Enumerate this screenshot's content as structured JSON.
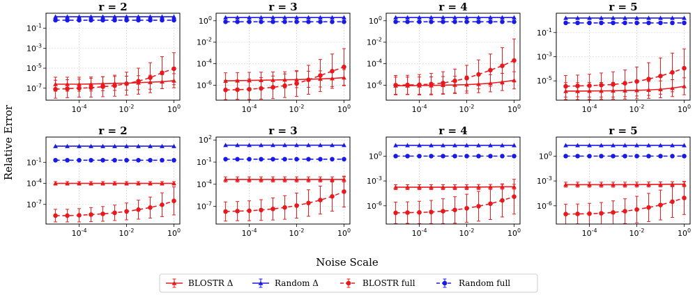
{
  "chart_data": {
    "type": "line",
    "xlabel": "Noise Scale",
    "ylabel": "Relative Error",
    "x_scale": "log",
    "y_scale": "log",
    "x": [
      1e-05,
      3.16e-05,
      0.0001,
      0.000316,
      0.001,
      0.00316,
      0.01,
      0.0316,
      0.1,
      0.316,
      1
    ],
    "x_ticks": [
      {
        "value": -4,
        "label": "10",
        "exp": "-4"
      },
      {
        "value": -2,
        "label": "10",
        "exp": "-2"
      },
      {
        "value": 0,
        "label": "10",
        "exp": "0"
      }
    ],
    "legend": [
      {
        "name": "BLOSTR Δ",
        "color": "#e8191d",
        "dash": "solid",
        "marker": "triangle"
      },
      {
        "name": "Random Δ",
        "color": "#1a1ae6",
        "dash": "solid",
        "marker": "triangle"
      },
      {
        "name": "BLOSTR full",
        "color": "#e8191d",
        "dash": "dashed",
        "marker": "circle"
      },
      {
        "name": "Random full",
        "color": "#1a1ae6",
        "dash": "dashed",
        "marker": "circle"
      }
    ],
    "panels": [
      {
        "title": "r = 2",
        "ylim": [
          -8.2,
          0.5
        ],
        "y_ticks": [
          {
            "value": -1,
            "label": "10",
            "exp": "-1"
          },
          {
            "value": -3,
            "label": "10",
            "exp": "-3"
          },
          {
            "value": -5,
            "label": "10",
            "exp": "-5"
          },
          {
            "value": -7,
            "label": "10",
            "exp": "-7"
          }
        ],
        "series": {
          "blostr_delta": [
            -6.6,
            -6.6,
            -6.6,
            -6.58,
            -6.55,
            -6.52,
            -6.5,
            -6.45,
            -6.4,
            -6.35,
            -6.25
          ],
          "random_delta": [
            0.15,
            0.15,
            0.15,
            0.15,
            0.15,
            0.15,
            0.15,
            0.15,
            0.15,
            0.15,
            0.15
          ],
          "blostr_full": [
            -7.1,
            -7.05,
            -7.0,
            -6.95,
            -6.85,
            -6.75,
            -6.55,
            -6.3,
            -5.95,
            -5.45,
            -5.05
          ],
          "random_full": [
            -0.2,
            -0.2,
            -0.2,
            -0.2,
            -0.2,
            -0.2,
            -0.2,
            -0.2,
            -0.2,
            -0.2,
            -0.2
          ]
        },
        "err_delta": 0.7,
        "err_full": [
          0.9,
          0.9,
          0.9,
          0.95,
          1.0,
          1.05,
          1.15,
          1.3,
          1.5,
          1.6,
          1.6
        ]
      },
      {
        "title": "r = 3",
        "ylim": [
          -7.4,
          0.7
        ],
        "y_ticks": [
          {
            "value": 0,
            "label": "10",
            "exp": "0"
          },
          {
            "value": -2,
            "label": "10",
            "exp": "-2"
          },
          {
            "value": -4,
            "label": "10",
            "exp": "-4"
          },
          {
            "value": -6,
            "label": "10",
            "exp": "-6"
          }
        ],
        "series": {
          "blostr_delta": [
            -5.6,
            -5.58,
            -5.56,
            -5.54,
            -5.52,
            -5.5,
            -5.48,
            -5.45,
            -5.42,
            -5.38,
            -5.3
          ],
          "random_delta": [
            0.3,
            0.3,
            0.3,
            0.3,
            0.3,
            0.3,
            0.3,
            0.3,
            0.3,
            0.3,
            0.3
          ],
          "blostr_full": [
            -6.45,
            -6.42,
            -6.38,
            -6.3,
            -6.2,
            -6.05,
            -5.85,
            -5.5,
            -5.1,
            -4.7,
            -4.3
          ],
          "random_full": [
            -0.1,
            -0.1,
            -0.1,
            -0.1,
            -0.1,
            -0.1,
            -0.1,
            -0.1,
            -0.1,
            -0.1,
            -0.1
          ]
        },
        "err_delta": 0.75,
        "err_full": [
          0.9,
          0.9,
          0.95,
          1.0,
          1.05,
          1.1,
          1.2,
          1.35,
          1.5,
          1.6,
          1.7
        ]
      },
      {
        "title": "r = 4",
        "ylim": [
          -7.4,
          0.7
        ],
        "y_ticks": [
          {
            "value": 0,
            "label": "10",
            "exp": "0"
          },
          {
            "value": -2,
            "label": "10",
            "exp": "-2"
          },
          {
            "value": -4,
            "label": "10",
            "exp": "-4"
          },
          {
            "value": -6,
            "label": "10",
            "exp": "-6"
          }
        ],
        "series": {
          "blostr_delta": [
            -6.05,
            -6.05,
            -6.04,
            -6.03,
            -6.0,
            -5.98,
            -5.95,
            -5.9,
            -5.82,
            -5.7,
            -5.55
          ],
          "random_delta": [
            0.3,
            0.3,
            0.3,
            0.3,
            0.3,
            0.3,
            0.3,
            0.3,
            0.3,
            0.3,
            0.3
          ],
          "blostr_full": [
            -6.0,
            -5.98,
            -5.96,
            -5.9,
            -5.8,
            -5.6,
            -5.35,
            -5.0,
            -4.6,
            -4.2,
            -3.7
          ],
          "random_full": [
            -0.1,
            -0.1,
            -0.1,
            -0.1,
            -0.1,
            -0.1,
            -0.1,
            -0.1,
            -0.1,
            -0.1,
            -0.1
          ]
        },
        "err_delta": 0.8,
        "err_full": [
          0.9,
          0.9,
          0.95,
          1.0,
          1.05,
          1.1,
          1.2,
          1.35,
          1.5,
          1.7,
          2.0
        ]
      },
      {
        "title": "r = 5",
        "ylim": [
          -6.6,
          0.6
        ],
        "y_ticks": [
          {
            "value": -1,
            "label": "10",
            "exp": "-1"
          },
          {
            "value": -3,
            "label": "10",
            "exp": "-3"
          },
          {
            "value": -5,
            "label": "10",
            "exp": "-5"
          }
        ],
        "series": {
          "blostr_delta": [
            -5.85,
            -5.85,
            -5.84,
            -5.83,
            -5.82,
            -5.8,
            -5.78,
            -5.75,
            -5.7,
            -5.6,
            -5.45
          ],
          "random_delta": [
            0.2,
            0.2,
            0.2,
            0.2,
            0.2,
            0.2,
            0.2,
            0.2,
            0.2,
            0.2,
            0.2
          ],
          "blostr_full": [
            -5.45,
            -5.42,
            -5.4,
            -5.35,
            -5.3,
            -5.2,
            -5.05,
            -4.85,
            -4.6,
            -4.3,
            -3.95
          ],
          "random_full": [
            -0.2,
            -0.2,
            -0.2,
            -0.2,
            -0.2,
            -0.2,
            -0.2,
            -0.2,
            -0.2,
            -0.2,
            -0.2
          ]
        },
        "err_delta": 0.7,
        "err_full": [
          0.9,
          0.9,
          0.95,
          1.0,
          1.05,
          1.1,
          1.2,
          1.35,
          1.5,
          1.6,
          1.6
        ]
      },
      {
        "title": "r = 2",
        "ylim": [
          -9.8,
          2.6
        ],
        "y_ticks": [
          {
            "value": -1,
            "label": "10",
            "exp": "-1"
          },
          {
            "value": -4,
            "label": "10",
            "exp": "-4"
          },
          {
            "value": -7,
            "label": "10",
            "exp": "-7"
          }
        ],
        "series": {
          "blostr_delta": [
            -4.0,
            -4.0,
            -4.0,
            -4.0,
            -4.0,
            -4.0,
            -4.0,
            -4.0,
            -4.0,
            -4.0,
            -4.0
          ],
          "random_delta": [
            1.3,
            1.3,
            1.3,
            1.3,
            1.3,
            1.3,
            1.3,
            1.3,
            1.3,
            1.3,
            1.3
          ],
          "blostr_full": [
            -8.6,
            -8.6,
            -8.55,
            -8.45,
            -8.35,
            -8.2,
            -8.0,
            -7.75,
            -7.45,
            -7.05,
            -6.5
          ],
          "random_full": [
            -0.7,
            -0.7,
            -0.7,
            -0.7,
            -0.7,
            -0.7,
            -0.7,
            -0.7,
            -0.7,
            -0.7,
            -0.7
          ]
        },
        "err_delta": 0.25,
        "err_full": [
          0.9,
          0.9,
          0.95,
          1.0,
          1.05,
          1.1,
          1.2,
          1.35,
          1.5,
          1.7,
          2.0
        ]
      },
      {
        "title": "r = 3",
        "ylim": [
          -9.4,
          2.4
        ],
        "y_ticks": [
          {
            "value": 2,
            "label": "10",
            "exp": "2"
          },
          {
            "value": -1,
            "label": "10",
            "exp": "-1"
          },
          {
            "value": -4,
            "label": "10",
            "exp": "-4"
          },
          {
            "value": -7,
            "label": "10",
            "exp": "-7"
          }
        ],
        "series": {
          "blostr_delta": [
            -3.35,
            -3.35,
            -3.35,
            -3.35,
            -3.35,
            -3.35,
            -3.35,
            -3.35,
            -3.35,
            -3.35,
            -3.35
          ],
          "random_delta": [
            1.3,
            1.3,
            1.3,
            1.3,
            1.3,
            1.3,
            1.3,
            1.3,
            1.3,
            1.3,
            1.3
          ],
          "blostr_full": [
            -7.7,
            -7.65,
            -7.6,
            -7.5,
            -7.35,
            -7.15,
            -6.9,
            -6.55,
            -6.15,
            -5.65,
            -5.0
          ],
          "random_full": [
            -0.6,
            -0.6,
            -0.6,
            -0.6,
            -0.6,
            -0.6,
            -0.6,
            -0.6,
            -0.6,
            -0.6,
            -0.6
          ]
        },
        "err_delta": 0.35,
        "err_full": [
          1.3,
          1.3,
          1.35,
          1.4,
          1.5,
          1.6,
          1.7,
          1.8,
          1.9,
          2.0,
          2.1
        ]
      },
      {
        "title": "r = 4",
        "ylim": [
          -8.2,
          2.3
        ],
        "y_ticks": [
          {
            "value": 0,
            "label": "10",
            "exp": "0"
          },
          {
            "value": -3,
            "label": "10",
            "exp": "-3"
          },
          {
            "value": -6,
            "label": "10",
            "exp": "-6"
          }
        ],
        "series": {
          "blostr_delta": [
            -3.75,
            -3.75,
            -3.75,
            -3.75,
            -3.75,
            -3.75,
            -3.74,
            -3.73,
            -3.72,
            -3.7,
            -3.7
          ],
          "random_delta": [
            1.3,
            1.3,
            1.3,
            1.3,
            1.3,
            1.3,
            1.3,
            1.3,
            1.3,
            1.3,
            1.3
          ],
          "blostr_full": [
            -6.85,
            -6.82,
            -6.8,
            -6.75,
            -6.65,
            -6.5,
            -6.3,
            -6.05,
            -5.75,
            -5.35,
            -4.9
          ],
          "random_full": [
            0.0,
            0.0,
            0.0,
            0.0,
            0.0,
            0.0,
            0.0,
            0.0,
            0.0,
            0.0,
            0.0
          ]
        },
        "err_delta": 0.3,
        "err_full": [
          1.3,
          1.3,
          1.35,
          1.4,
          1.5,
          1.6,
          1.7,
          1.8,
          1.9,
          2.0,
          2.1
        ]
      },
      {
        "title": "r = 5",
        "ylim": [
          -8.2,
          2.3
        ],
        "y_ticks": [
          {
            "value": 0,
            "label": "10",
            "exp": "0"
          },
          {
            "value": -3,
            "label": "10",
            "exp": "-3"
          },
          {
            "value": -6,
            "label": "10",
            "exp": "-6"
          }
        ],
        "series": {
          "blostr_delta": [
            -3.45,
            -3.45,
            -3.45,
            -3.45,
            -3.45,
            -3.45,
            -3.44,
            -3.43,
            -3.42,
            -3.4,
            -3.4
          ],
          "random_delta": [
            1.3,
            1.3,
            1.3,
            1.3,
            1.3,
            1.3,
            1.3,
            1.3,
            1.3,
            1.3,
            1.3
          ],
          "blostr_full": [
            -7.0,
            -6.98,
            -6.95,
            -6.9,
            -6.8,
            -6.65,
            -6.45,
            -6.2,
            -5.9,
            -5.5,
            -5.05
          ],
          "random_full": [
            0.0,
            0.0,
            0.0,
            0.0,
            0.0,
            0.0,
            0.0,
            0.0,
            0.0,
            0.0,
            0.0
          ]
        },
        "err_delta": 0.3,
        "err_full": [
          1.2,
          1.2,
          1.25,
          1.3,
          1.4,
          1.5,
          1.6,
          1.7,
          1.8,
          1.9,
          2.0
        ]
      }
    ]
  }
}
